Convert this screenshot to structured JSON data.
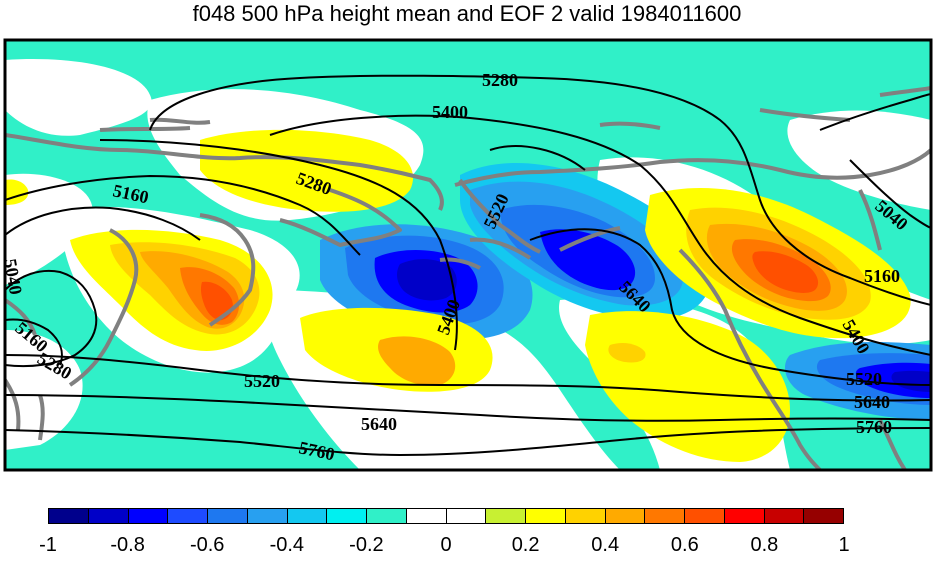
{
  "title": "f048 500 hPa height mean and EOF 2 valid 1984011600",
  "contour_labels": [
    "5280",
    "5400",
    "5280",
    "5160",
    "5520",
    "5640",
    "5040",
    "5160",
    "5400",
    "5520",
    "5640",
    "5760",
    "5040",
    "5160",
    "5280",
    "5520",
    "5640",
    "5760",
    "5400"
  ],
  "colorbar": {
    "colors": [
      "#00008c",
      "#0000c8",
      "#0000ff",
      "#1e4bff",
      "#1e78f0",
      "#28a0f0",
      "#14c8f0",
      "#00f0f0",
      "#30f0c8",
      "#ffffff",
      "#ffffff",
      "#c8f032",
      "#ffff00",
      "#ffd200",
      "#ffaa00",
      "#ff7800",
      "#ff5000",
      "#ff0000",
      "#c80000",
      "#960000"
    ],
    "tick_labels": [
      "-1",
      "-0.8",
      "-0.6",
      "-0.4",
      "-0.2",
      "0",
      "0.2",
      "0.4",
      "0.6",
      "0.8",
      "1"
    ]
  }
}
